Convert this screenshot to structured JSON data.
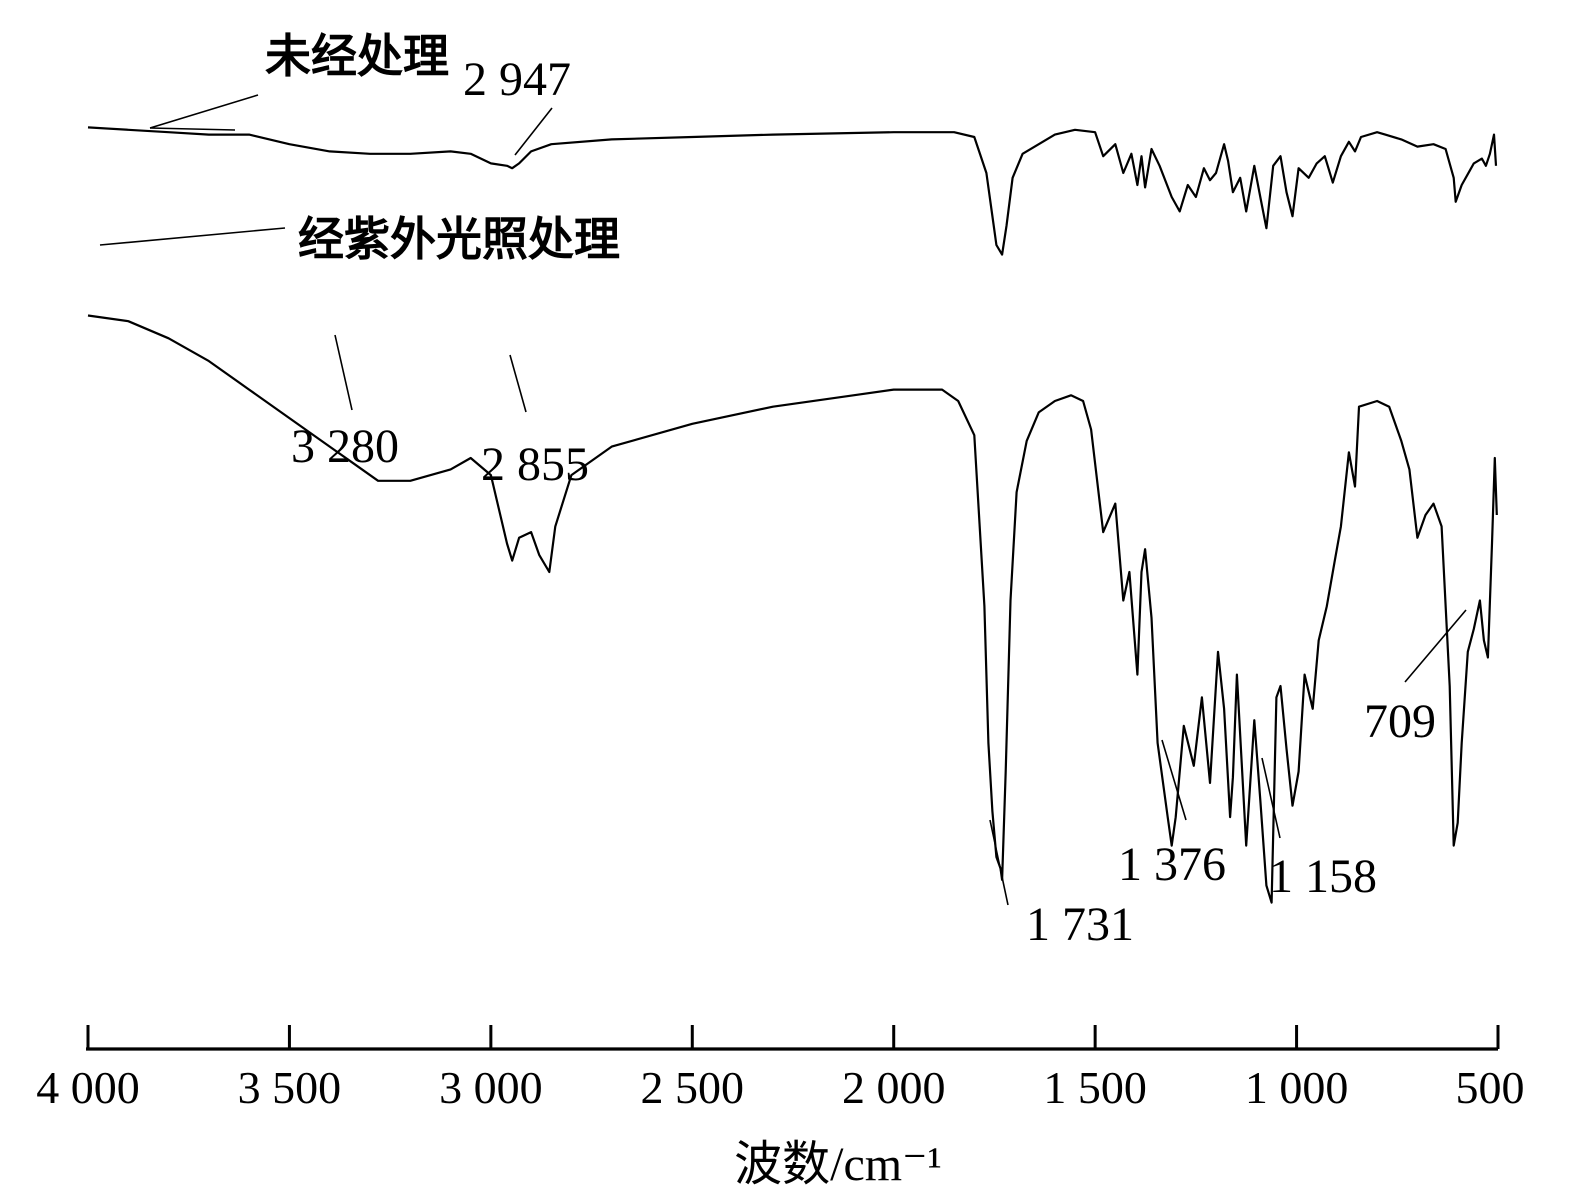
{
  "chart_data": {
    "type": "line",
    "title": "",
    "xlabel": "波数/cm⁻¹",
    "ylabel": "",
    "xlim": [
      4000,
      500
    ],
    "x_reversed": true,
    "x_ticks": [
      4000,
      3500,
      3000,
      2500,
      2000,
      1500,
      1000,
      500
    ],
    "x_tick_labels": [
      "4 000",
      "3 500",
      "3 000",
      "2 500",
      "2 000",
      "1 500",
      "1 000",
      "500"
    ],
    "y_axis_shown": false,
    "grid": false,
    "series": [
      {
        "name": "未经处理",
        "points": [
          [
            4000,
            99
          ],
          [
            3900,
            98
          ],
          [
            3800,
            97
          ],
          [
            3700,
            96
          ],
          [
            3600,
            96
          ],
          [
            3500,
            92
          ],
          [
            3400,
            89
          ],
          [
            3300,
            88
          ],
          [
            3200,
            88
          ],
          [
            3100,
            89
          ],
          [
            3050,
            88
          ],
          [
            3000,
            84
          ],
          [
            2960,
            83
          ],
          [
            2947,
            82
          ],
          [
            2930,
            84
          ],
          [
            2900,
            89
          ],
          [
            2850,
            92
          ],
          [
            2700,
            94
          ],
          [
            2500,
            95
          ],
          [
            2300,
            96
          ],
          [
            2000,
            97
          ],
          [
            1850,
            97
          ],
          [
            1800,
            95
          ],
          [
            1770,
            80
          ],
          [
            1755,
            62
          ],
          [
            1745,
            50
          ],
          [
            1731,
            46
          ],
          [
            1720,
            58
          ],
          [
            1705,
            78
          ],
          [
            1680,
            88
          ],
          [
            1600,
            96
          ],
          [
            1550,
            98
          ],
          [
            1500,
            97
          ],
          [
            1480,
            87
          ],
          [
            1450,
            92
          ],
          [
            1430,
            80
          ],
          [
            1410,
            88
          ],
          [
            1395,
            75
          ],
          [
            1385,
            87
          ],
          [
            1376,
            74
          ],
          [
            1360,
            90
          ],
          [
            1340,
            83
          ],
          [
            1310,
            70
          ],
          [
            1290,
            64
          ],
          [
            1270,
            75
          ],
          [
            1250,
            70
          ],
          [
            1230,
            82
          ],
          [
            1215,
            77
          ],
          [
            1200,
            80
          ],
          [
            1180,
            92
          ],
          [
            1170,
            85
          ],
          [
            1158,
            72
          ],
          [
            1140,
            78
          ],
          [
            1125,
            64
          ],
          [
            1105,
            83
          ],
          [
            1090,
            70
          ],
          [
            1075,
            57
          ],
          [
            1058,
            83
          ],
          [
            1040,
            87
          ],
          [
            1025,
            72
          ],
          [
            1010,
            62
          ],
          [
            995,
            82
          ],
          [
            970,
            78
          ],
          [
            950,
            84
          ],
          [
            930,
            87
          ],
          [
            910,
            76
          ],
          [
            890,
            87
          ],
          [
            870,
            93
          ],
          [
            855,
            89
          ],
          [
            840,
            95
          ],
          [
            800,
            97
          ],
          [
            780,
            96
          ],
          [
            740,
            94
          ],
          [
            700,
            91
          ],
          [
            660,
            92
          ],
          [
            630,
            90
          ],
          [
            610,
            78
          ],
          [
            605,
            68
          ],
          [
            590,
            75
          ],
          [
            570,
            81
          ],
          [
            560,
            84
          ],
          [
            540,
            86
          ],
          [
            530,
            83
          ],
          [
            520,
            88
          ],
          [
            510,
            96
          ],
          [
            505,
            83
          ]
        ]
      },
      {
        "name": "经紫外光照处理",
        "points": [
          [
            4000,
            85
          ],
          [
            3900,
            84
          ],
          [
            3800,
            81
          ],
          [
            3700,
            77
          ],
          [
            3600,
            72
          ],
          [
            3500,
            67
          ],
          [
            3400,
            62
          ],
          [
            3340,
            59
          ],
          [
            3280,
            56
          ],
          [
            3200,
            56
          ],
          [
            3100,
            58
          ],
          [
            3050,
            60
          ],
          [
            3000,
            57
          ],
          [
            2960,
            45
          ],
          [
            2947,
            42
          ],
          [
            2930,
            46
          ],
          [
            2900,
            47
          ],
          [
            2880,
            43
          ],
          [
            2855,
            40
          ],
          [
            2840,
            48
          ],
          [
            2800,
            57
          ],
          [
            2700,
            62
          ],
          [
            2500,
            66
          ],
          [
            2300,
            69
          ],
          [
            2100,
            71
          ],
          [
            2000,
            72
          ],
          [
            1880,
            72
          ],
          [
            1840,
            70
          ],
          [
            1800,
            64
          ],
          [
            1775,
            34
          ],
          [
            1765,
            10
          ],
          [
            1755,
            -2
          ],
          [
            1745,
            -10
          ],
          [
            1735,
            -12
          ],
          [
            1731,
            -14
          ],
          [
            1722,
            5
          ],
          [
            1710,
            35
          ],
          [
            1695,
            54
          ],
          [
            1670,
            63
          ],
          [
            1640,
            68
          ],
          [
            1600,
            70
          ],
          [
            1560,
            71
          ],
          [
            1530,
            70
          ],
          [
            1510,
            65
          ],
          [
            1480,
            47
          ],
          [
            1450,
            52
          ],
          [
            1430,
            35
          ],
          [
            1415,
            40
          ],
          [
            1395,
            22
          ],
          [
            1385,
            40
          ],
          [
            1376,
            44
          ],
          [
            1360,
            32
          ],
          [
            1345,
            10
          ],
          [
            1320,
            -3
          ],
          [
            1310,
            -8
          ],
          [
            1300,
            -3
          ],
          [
            1280,
            13
          ],
          [
            1255,
            6
          ],
          [
            1235,
            18
          ],
          [
            1215,
            3
          ],
          [
            1195,
            26
          ],
          [
            1180,
            16
          ],
          [
            1165,
            -3
          ],
          [
            1158,
            4
          ],
          [
            1148,
            22
          ],
          [
            1125,
            -8
          ],
          [
            1105,
            14
          ],
          [
            1090,
            0
          ],
          [
            1075,
            -15
          ],
          [
            1062,
            -18
          ],
          [
            1050,
            18
          ],
          [
            1040,
            20
          ],
          [
            1025,
            9
          ],
          [
            1010,
            -1
          ],
          [
            995,
            5
          ],
          [
            980,
            22
          ],
          [
            960,
            16
          ],
          [
            945,
            28
          ],
          [
            925,
            34
          ],
          [
            905,
            42
          ],
          [
            890,
            48
          ],
          [
            870,
            61
          ],
          [
            855,
            55
          ],
          [
            845,
            69
          ],
          [
            800,
            70
          ],
          [
            770,
            69
          ],
          [
            740,
            63
          ],
          [
            720,
            58
          ],
          [
            700,
            46
          ],
          [
            680,
            50
          ],
          [
            660,
            52
          ],
          [
            640,
            48
          ],
          [
            620,
            20
          ],
          [
            610,
            -8
          ],
          [
            600,
            -4
          ],
          [
            590,
            10
          ],
          [
            575,
            26
          ],
          [
            560,
            30
          ],
          [
            545,
            35
          ],
          [
            535,
            28
          ],
          [
            525,
            25
          ],
          [
            515,
            45
          ],
          [
            508,
            60
          ],
          [
            503,
            50
          ]
        ]
      }
    ],
    "peak_labels": [
      {
        "text": "2 947",
        "x": 2947,
        "series": 0
      },
      {
        "text": "3 280",
        "x": 3280,
        "series": 1
      },
      {
        "text": "2 855",
        "x": 2855,
        "series": 1
      },
      {
        "text": "1 731",
        "x": 1731,
        "series": 1
      },
      {
        "text": "1 376",
        "x": 1376,
        "series": 1
      },
      {
        "text": "1 158",
        "x": 1158,
        "series": 1
      },
      {
        "text": "709",
        "x": 709,
        "series": 1
      }
    ]
  }
}
